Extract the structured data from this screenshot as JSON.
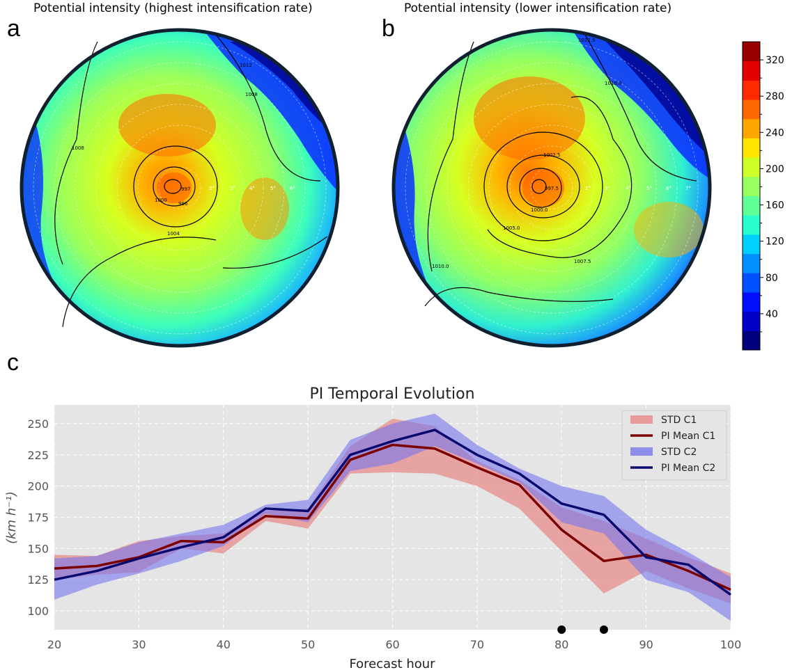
{
  "panels": {
    "a": {
      "letter": "a",
      "title": "Potential intensity (highest intensification rate)",
      "contour_labels": [
        "1012",
        "1008",
        "1008",
        "1004",
        "1000",
        "996",
        "997"
      ],
      "ring_labels": [
        "2°",
        "3°",
        "4°",
        "5°",
        "6°"
      ]
    },
    "b": {
      "letter": "b",
      "title": "Potential intensity (lower intensification rate)",
      "contour_labels": [
        "1012.5",
        "1010.0",
        "1010.0",
        "1007.5",
        "1005.0",
        "1002.5",
        "1000.0",
        "997.5"
      ],
      "ring_labels": [
        "2°",
        "3°",
        "4°",
        "5°",
        "6°",
        "7°"
      ]
    },
    "c": {
      "letter": "c"
    }
  },
  "colorbar": {
    "min": 0,
    "max": 340,
    "ticks": [
      40,
      80,
      120,
      160,
      200,
      240,
      280,
      320
    ],
    "colors": [
      "#00007f",
      "#0000c8",
      "#0010ff",
      "#0050ff",
      "#0090ff",
      "#00d0ff",
      "#29ffce",
      "#60ff97",
      "#97ff60",
      "#ceff29",
      "#ffe600",
      "#ffa700",
      "#ff6800",
      "#ff2900",
      "#e40000",
      "#9a0000"
    ]
  },
  "chart_data": {
    "type": "line",
    "title": "PI Temporal Evolution",
    "xlabel": "Forecast hour",
    "ylabel": "(km h⁻¹)",
    "xlim": [
      20,
      100
    ],
    "ylim": [
      85,
      265
    ],
    "x_ticks": [
      20,
      30,
      40,
      50,
      60,
      70,
      80,
      90,
      100
    ],
    "y_ticks": [
      100,
      125,
      150,
      175,
      200,
      225,
      250
    ],
    "grid": true,
    "legend_position": "top-right",
    "x": [
      20,
      25,
      30,
      35,
      40,
      45,
      50,
      55,
      60,
      65,
      70,
      75,
      80,
      85,
      90,
      95,
      100
    ],
    "bands": [
      {
        "name": "STD C1",
        "color": "#e88886",
        "upper": [
          145,
          144,
          156,
          160,
          162,
          180,
          182,
          232,
          254,
          248,
          220,
          205,
          183,
          172,
          158,
          143,
          130
        ],
        "lower": [
          125,
          129,
          131,
          150,
          146,
          172,
          166,
          210,
          211,
          210,
          200,
          182,
          148,
          114,
          132,
          118,
          106
        ]
      },
      {
        "name": "STD C2",
        "color": "#7777ee",
        "upper": [
          142,
          144,
          155,
          162,
          169,
          185,
          189,
          237,
          250,
          258,
          233,
          214,
          200,
          192,
          165,
          147,
          127
        ]
      },
      {
        "name": "STD C2 lower",
        "color": "#7777ee",
        "upper": [
          109,
          121,
          130,
          140,
          152,
          178,
          171,
          212,
          218,
          232,
          218,
          203,
          171,
          162,
          125,
          115,
          92
        ]
      }
    ],
    "series": [
      {
        "name": "PI Mean C1",
        "color": "#7b0000",
        "values": [
          134,
          136,
          143,
          156,
          155,
          176,
          174,
          221,
          233,
          230,
          215,
          201,
          165,
          140,
          145,
          132,
          117
        ]
      },
      {
        "name": "PI Mean C2",
        "color": "#0a0a6e",
        "values": [
          125,
          132,
          142,
          151,
          159,
          182,
          180,
          225,
          236,
          245,
          225,
          210,
          186,
          177,
          143,
          137,
          113
        ]
      }
    ],
    "legend": [
      {
        "label": "STD C1",
        "kind": "patch",
        "color": "#e88886"
      },
      {
        "label": "PI Mean C1",
        "kind": "line",
        "color": "#7b0000"
      },
      {
        "label": "STD C2",
        "kind": "patch",
        "color": "#7777ee"
      },
      {
        "label": "PI Mean C2",
        "kind": "line",
        "color": "#0a0a6e"
      }
    ],
    "markers": {
      "x": [
        80,
        85
      ],
      "color": "#000000"
    }
  }
}
